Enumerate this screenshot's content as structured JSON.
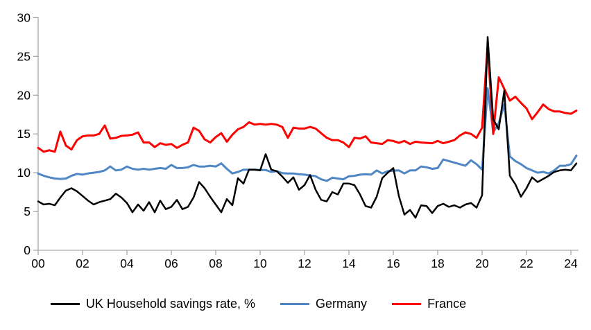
{
  "chart_data": {
    "type": "line",
    "title": "",
    "frequency": "quarterly",
    "grid": false,
    "legend_position": "bottom",
    "x_axis": {
      "tick_labels": [
        "00",
        "02",
        "04",
        "06",
        "08",
        "10",
        "12",
        "14",
        "16",
        "18",
        "20",
        "22",
        "24"
      ],
      "tick_points": [
        0,
        8,
        16,
        24,
        32,
        40,
        48,
        56,
        64,
        72,
        80,
        88,
        96
      ],
      "num_points": 98
    },
    "y_axis": {
      "ticks": [
        0,
        5,
        10,
        15,
        20,
        25,
        30
      ],
      "min": 0,
      "max": 30
    },
    "axis_color": "#a6a6a6",
    "label_color": "#000000",
    "series": [
      {
        "name": "UK Household savings rate, %",
        "color": "#000000",
        "stroke_width": 2.5,
        "values": [
          6.3,
          5.9,
          6.0,
          5.8,
          6.8,
          7.7,
          8.0,
          7.6,
          7.0,
          6.4,
          5.9,
          6.2,
          6.4,
          6.6,
          7.3,
          6.8,
          6.1,
          4.9,
          5.9,
          5.1,
          6.2,
          4.9,
          6.4,
          5.3,
          5.6,
          6.5,
          5.3,
          5.6,
          6.8,
          8.8,
          8.0,
          6.9,
          5.9,
          4.9,
          6.6,
          5.8,
          9.3,
          8.6,
          10.4,
          10.4,
          10.3,
          12.4,
          10.4,
          10.2,
          9.5,
          8.7,
          9.4,
          7.8,
          8.4,
          9.7,
          7.8,
          6.5,
          6.3,
          7.5,
          7.2,
          8.6,
          8.6,
          8.4,
          7.2,
          5.7,
          5.5,
          6.9,
          9.3,
          10.0,
          10.6,
          7.0,
          4.6,
          5.2,
          4.2,
          5.8,
          5.7,
          4.8,
          5.7,
          6.0,
          5.6,
          5.8,
          5.5,
          5.9,
          6.1,
          5.5,
          7.1,
          27.5,
          16.9,
          15.6,
          20.6,
          9.6,
          8.5,
          6.9,
          8.0,
          9.4,
          8.8,
          9.2,
          9.6,
          10.1,
          10.3,
          10.4,
          10.3,
          11.2
        ]
      },
      {
        "name": "Germany",
        "color": "#4f86c4",
        "stroke_width": 3,
        "values": [
          9.9,
          9.6,
          9.4,
          9.25,
          9.2,
          9.25,
          9.6,
          9.85,
          9.75,
          9.9,
          10.0,
          10.1,
          10.3,
          10.8,
          10.3,
          10.4,
          10.8,
          10.5,
          10.4,
          10.5,
          10.4,
          10.5,
          10.6,
          10.5,
          11.0,
          10.6,
          10.6,
          10.7,
          11.0,
          10.8,
          10.8,
          10.9,
          10.8,
          11.2,
          10.5,
          9.9,
          10.1,
          10.4,
          10.4,
          10.4,
          10.35,
          10.35,
          10.1,
          10.2,
          9.95,
          9.9,
          9.9,
          9.8,
          9.75,
          9.65,
          9.55,
          9.15,
          8.95,
          9.35,
          9.25,
          9.15,
          9.55,
          9.6,
          9.75,
          9.8,
          9.75,
          10.3,
          9.9,
          10.2,
          10.25,
          10.3,
          9.9,
          10.3,
          10.3,
          10.8,
          10.7,
          10.5,
          10.6,
          11.7,
          11.5,
          11.3,
          11.1,
          10.9,
          11.6,
          11.1,
          10.4,
          20.9,
          15.2,
          16.4,
          18.8,
          12.1,
          11.5,
          11.1,
          10.6,
          10.3,
          10.0,
          10.1,
          9.9,
          10.3,
          10.9,
          10.9,
          11.1,
          12.2
        ]
      },
      {
        "name": "France",
        "color": "#ff0000",
        "stroke_width": 3,
        "values": [
          13.2,
          12.7,
          12.9,
          12.7,
          15.3,
          13.5,
          13.0,
          14.2,
          14.7,
          14.8,
          14.8,
          15.0,
          16.1,
          14.4,
          14.5,
          14.75,
          14.8,
          14.9,
          15.2,
          13.9,
          13.9,
          13.3,
          13.8,
          13.6,
          13.7,
          13.2,
          13.6,
          13.9,
          15.8,
          15.4,
          14.3,
          13.9,
          14.6,
          15.1,
          14.0,
          14.9,
          15.6,
          15.9,
          16.5,
          16.2,
          16.3,
          16.2,
          16.3,
          16.2,
          15.9,
          14.5,
          15.8,
          15.7,
          15.7,
          15.9,
          15.7,
          15.1,
          14.5,
          14.2,
          14.2,
          13.9,
          13.3,
          14.5,
          14.4,
          14.7,
          13.9,
          13.8,
          13.7,
          14.2,
          14.1,
          13.85,
          14.1,
          13.7,
          14.0,
          13.9,
          13.85,
          13.8,
          14.1,
          13.8,
          14.0,
          14.2,
          14.8,
          15.2,
          15.0,
          14.5,
          15.8,
          26.5,
          15.0,
          22.3,
          20.8,
          19.3,
          19.8,
          19.0,
          18.3,
          16.9,
          17.8,
          18.8,
          18.2,
          17.9,
          17.9,
          17.7,
          17.6,
          18.0
        ]
      }
    ]
  }
}
